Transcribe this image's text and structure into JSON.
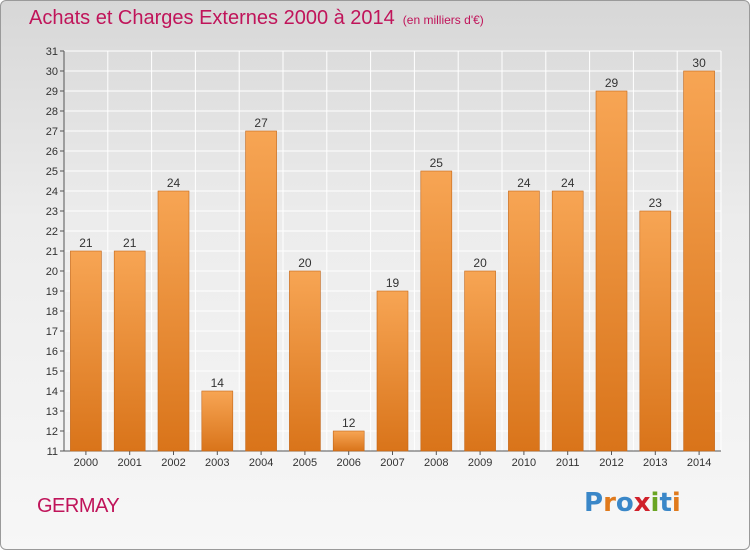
{
  "title": "Achats et Charges Externes 2000 à 2014",
  "unit_label": "(en milliers d'€)",
  "commune": "GERMAY",
  "logo": {
    "text": "Proxiti",
    "letter_colors": [
      "#3a87c8",
      "#e07a1c",
      "#3a87c8",
      "#d0202a",
      "#6aa523",
      "#3a87c8",
      "#e07a1c"
    ]
  },
  "colors": {
    "bar_top": "#f7a554",
    "bar_bottom": "#d9741a",
    "title": "#c0145a",
    "grid": "#ffffff"
  },
  "chart_data": {
    "type": "bar",
    "title": "Achats et Charges Externes 2000 à 2014",
    "subtitle": "(en milliers d'€)",
    "xlabel": "",
    "ylabel": "",
    "categories": [
      "2000",
      "2001",
      "2002",
      "2003",
      "2004",
      "2005",
      "2006",
      "2007",
      "2008",
      "2009",
      "2010",
      "2011",
      "2012",
      "2013",
      "2014"
    ],
    "values": [
      21,
      21,
      24,
      14,
      27,
      20,
      12,
      19,
      25,
      20,
      24,
      24,
      29,
      23,
      30
    ],
    "ylim": [
      11,
      31
    ],
    "yticks": [
      11,
      12,
      13,
      14,
      15,
      16,
      17,
      18,
      19,
      20,
      21,
      22,
      23,
      24,
      25,
      26,
      27,
      28,
      29,
      30,
      31
    ],
    "grid": true,
    "data_labels": true
  }
}
